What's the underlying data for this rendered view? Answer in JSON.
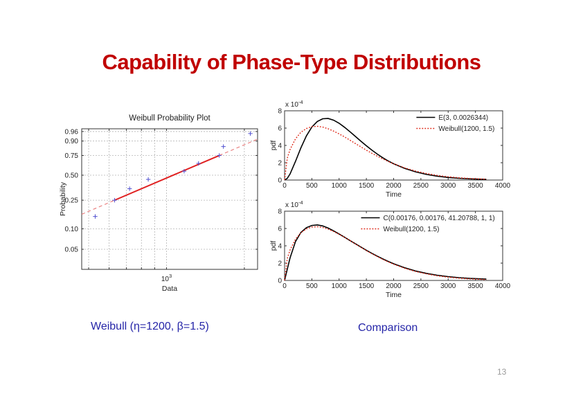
{
  "slide": {
    "title": "Capability of Phase-Type Distributions",
    "page_number": "13"
  },
  "captions": {
    "left": "Weibull (η=1200, β=1.5)",
    "right": "Comparison"
  },
  "colors": {
    "title": "#c00000",
    "caption": "#2525a8",
    "erlang_curve": "#000000",
    "weibull_curve": "#dd2211",
    "prob_marker": "#5050d0",
    "prob_fit_line": "#e02020",
    "prob_fit_dashed": "#e87878"
  },
  "chart_data": [
    {
      "id": "weibull-probability-plot",
      "type": "scatter",
      "title": "Weibull Probability Plot",
      "xlabel": "Data",
      "ylabel": "Probability",
      "x_scale": "log",
      "y_scale": "weibull-probability",
      "grid": true,
      "xlim": [
        470,
        2250
      ],
      "ylim": [
        0.025,
        0.971
      ],
      "x_gridlines": [
        500,
        600,
        700,
        800,
        900,
        1000,
        2000
      ],
      "x_tick_label": {
        "base": "10",
        "exp": "3",
        "value": 1000
      },
      "yticks": [
        0.05,
        0.1,
        0.25,
        0.5,
        0.75,
        0.9,
        0.96
      ],
      "points": {
        "data": [
          530,
          630,
          720,
          850,
          1170,
          1330,
          1600,
          1660,
          2110
        ],
        "probability": [
          0.15,
          0.25,
          0.35,
          0.45,
          0.55,
          0.65,
          0.75,
          0.85,
          0.95
        ]
      },
      "fit_line": {
        "x1": 630,
        "p1": 0.25,
        "x2": 1600,
        "p2": 0.75
      },
      "marker_color": "#5050d0",
      "line_color": "#e02020",
      "dashed_color": "#e87878"
    },
    {
      "id": "erlang-vs-weibull-pdf",
      "type": "line",
      "xlabel": "Time",
      "ylabel": "pdf",
      "scale_label": {
        "base": "x 10",
        "exp": "-4"
      },
      "y_unit": "1e-4",
      "grid": false,
      "legend_position": "upper right",
      "xlim": [
        0,
        4000
      ],
      "ylim": [
        0,
        8
      ],
      "xticks": [
        0,
        500,
        1000,
        1500,
        2000,
        2500,
        3000,
        3500,
        4000
      ],
      "yticks": [
        0,
        2,
        4,
        6,
        8
      ],
      "x": [
        0,
        50,
        100,
        200,
        300,
        400,
        500,
        600,
        700,
        800,
        900,
        1000,
        1100,
        1200,
        1300,
        1400,
        1500,
        1600,
        1700,
        1800,
        1900,
        2000,
        2200,
        2400,
        2600,
        2800,
        3000,
        3200,
        3400,
        3700
      ],
      "series": [
        {
          "name": "E(3, 0.0026344)",
          "color": "#000000",
          "style": "solid",
          "values": [
            0,
            0.2,
            0.7,
            2.16,
            3.73,
            5.1,
            6.12,
            6.77,
            7.08,
            7.11,
            6.91,
            6.56,
            6.1,
            5.58,
            5.03,
            4.48,
            3.96,
            3.46,
            3.0,
            2.58,
            2.21,
            1.88,
            1.35,
            0.95,
            0.65,
            0.45,
            0.3,
            0.2,
            0.14,
            0.07
          ]
        },
        {
          "name": "Weibull(1200, 1.5)",
          "color": "#dd2211",
          "style": "dotted",
          "values": [
            0,
            2.53,
            3.52,
            4.77,
            5.52,
            5.95,
            6.17,
            6.21,
            6.12,
            5.92,
            5.65,
            5.33,
            4.98,
            4.6,
            4.21,
            3.83,
            3.45,
            3.1,
            2.76,
            2.44,
            2.15,
            1.88,
            1.41,
            1.04,
            0.76,
            0.54,
            0.38,
            0.26,
            0.18,
            0.1
          ]
        }
      ]
    },
    {
      "id": "coxian-vs-weibull-pdf",
      "type": "line",
      "xlabel": "Time",
      "ylabel": "pdf",
      "scale_label": {
        "base": "x 10",
        "exp": "-4"
      },
      "y_unit": "1e-4",
      "grid": false,
      "legend_position": "upper right",
      "xlim": [
        0,
        4000
      ],
      "ylim": [
        0,
        8
      ],
      "xticks": [
        0,
        500,
        1000,
        1500,
        2000,
        2500,
        3000,
        3500,
        4000
      ],
      "yticks": [
        0,
        2,
        4,
        6,
        8
      ],
      "x": [
        0,
        50,
        100,
        200,
        300,
        400,
        500,
        600,
        700,
        800,
        900,
        1000,
        1100,
        1200,
        1300,
        1400,
        1500,
        1600,
        1700,
        1800,
        1900,
        2000,
        2200,
        2400,
        2600,
        2800,
        3000,
        3200,
        3400,
        3700
      ],
      "series": [
        {
          "name": "C(0.00176, 0.00176, 41.20788, 1, 1)",
          "color": "#000000",
          "style": "solid",
          "values": [
            0,
            1.3,
            2.6,
            4.5,
            5.55,
            6.1,
            6.35,
            6.42,
            6.3,
            6.05,
            5.73,
            5.37,
            4.99,
            4.61,
            4.23,
            3.86,
            3.49,
            3.14,
            2.81,
            2.49,
            2.2,
            1.93,
            1.47,
            1.1,
            0.82,
            0.6,
            0.44,
            0.32,
            0.23,
            0.15
          ]
        },
        {
          "name": "Weibull(1200, 1.5)",
          "color": "#dd2211",
          "style": "dotted",
          "values": [
            0,
            2.53,
            3.52,
            4.77,
            5.52,
            5.95,
            6.17,
            6.21,
            6.12,
            5.92,
            5.65,
            5.33,
            4.98,
            4.6,
            4.21,
            3.83,
            3.45,
            3.1,
            2.76,
            2.44,
            2.15,
            1.88,
            1.41,
            1.04,
            0.76,
            0.54,
            0.38,
            0.26,
            0.18,
            0.1
          ]
        }
      ]
    }
  ]
}
